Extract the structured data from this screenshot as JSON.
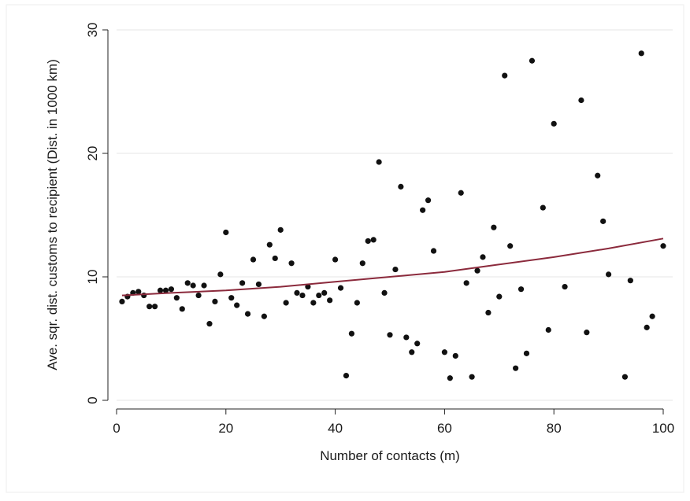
{
  "chart_data": {
    "type": "scatter",
    "title": "",
    "xlabel": "Number of contacts (m)",
    "ylabel": "Ave. sqr. dist. customs to recipient (Dist. in 1000 km)",
    "xlim": [
      0,
      100
    ],
    "ylim": [
      0,
      30
    ],
    "xticks": [
      "0",
      "20",
      "40",
      "60",
      "80",
      "100"
    ],
    "yticks": [
      "0",
      "10",
      "20",
      "30"
    ],
    "grid": true,
    "legend": "none",
    "colors": {
      "points": "#111111",
      "fit_line": "#8b2a3c",
      "grid": "#e6e6e6",
      "background": "#ffffff"
    },
    "points": [
      [
        1,
        8.0
      ],
      [
        2,
        8.4
      ],
      [
        3,
        8.7
      ],
      [
        4,
        8.8
      ],
      [
        5,
        8.5
      ],
      [
        6,
        7.6
      ],
      [
        7,
        7.6
      ],
      [
        8,
        8.9
      ],
      [
        9,
        8.9
      ],
      [
        10,
        9.0
      ],
      [
        11,
        8.3
      ],
      [
        12,
        7.4
      ],
      [
        13,
        9.5
      ],
      [
        14,
        9.3
      ],
      [
        15,
        8.5
      ],
      [
        16,
        9.3
      ],
      [
        17,
        6.2
      ],
      [
        18,
        8.0
      ],
      [
        19,
        10.2
      ],
      [
        20,
        13.6
      ],
      [
        21,
        8.3
      ],
      [
        22,
        7.7
      ],
      [
        23,
        9.5
      ],
      [
        24,
        7.0
      ],
      [
        25,
        11.4
      ],
      [
        26,
        9.4
      ],
      [
        27,
        6.8
      ],
      [
        28,
        12.6
      ],
      [
        29,
        11.5
      ],
      [
        30,
        13.8
      ],
      [
        31,
        7.9
      ],
      [
        32,
        11.1
      ],
      [
        33,
        8.7
      ],
      [
        34,
        8.5
      ],
      [
        35,
        9.2
      ],
      [
        36,
        7.9
      ],
      [
        37,
        8.5
      ],
      [
        38,
        8.7
      ],
      [
        39,
        8.1
      ],
      [
        40,
        11.4
      ],
      [
        41,
        9.1
      ],
      [
        42,
        2.0
      ],
      [
        43,
        5.4
      ],
      [
        44,
        7.9
      ],
      [
        45,
        11.1
      ],
      [
        46,
        12.9
      ],
      [
        47,
        13.0
      ],
      [
        48,
        19.3
      ],
      [
        49,
        8.7
      ],
      [
        50,
        5.3
      ],
      [
        51,
        10.6
      ],
      [
        52,
        17.3
      ],
      [
        53,
        5.1
      ],
      [
        54,
        3.9
      ],
      [
        55,
        4.6
      ],
      [
        56,
        15.4
      ],
      [
        57,
        16.2
      ],
      [
        58,
        12.1
      ],
      [
        60,
        3.9
      ],
      [
        61,
        1.8
      ],
      [
        62,
        3.6
      ],
      [
        63,
        16.8
      ],
      [
        64,
        9.5
      ],
      [
        65,
        1.9
      ],
      [
        66,
        10.5
      ],
      [
        67,
        11.6
      ],
      [
        68,
        7.1
      ],
      [
        69,
        14.0
      ],
      [
        70,
        8.4
      ],
      [
        71,
        26.3
      ],
      [
        72,
        12.5
      ],
      [
        73,
        2.6
      ],
      [
        74,
        9.0
      ],
      [
        75,
        3.8
      ],
      [
        76,
        27.5
      ],
      [
        78,
        15.6
      ],
      [
        79,
        5.7
      ],
      [
        80,
        22.4
      ],
      [
        82,
        9.2
      ],
      [
        85,
        24.3
      ],
      [
        86,
        5.5
      ],
      [
        88,
        18.2
      ],
      [
        89,
        14.5
      ],
      [
        90,
        10.2
      ],
      [
        93,
        1.9
      ],
      [
        94,
        9.7
      ],
      [
        96,
        28.1
      ],
      [
        97,
        5.9
      ],
      [
        98,
        6.8
      ],
      [
        100,
        12.5
      ]
    ],
    "fit_line": {
      "type": "exponential",
      "x": [
        1,
        10,
        20,
        30,
        40,
        50,
        60,
        70,
        80,
        90,
        100
      ],
      "y": [
        8.5,
        8.7,
        8.9,
        9.2,
        9.6,
        10.0,
        10.4,
        11.0,
        11.6,
        12.3,
        13.1
      ]
    }
  }
}
